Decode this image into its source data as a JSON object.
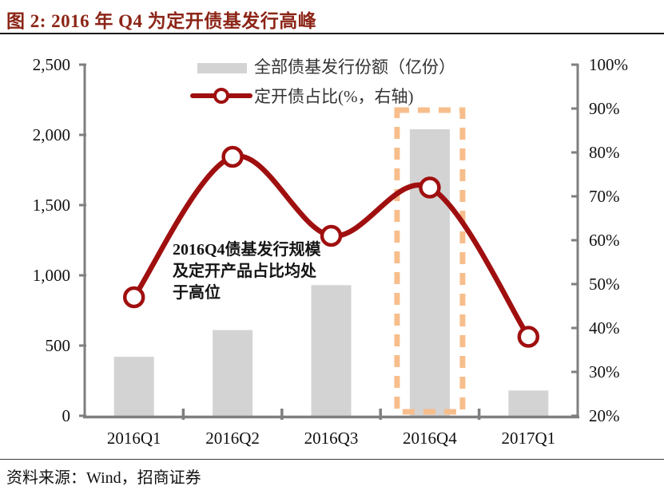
{
  "title": "图 2: 2016 年 Q4 为定开债基发行高峰",
  "legend": {
    "bar_label": "全部债基发行份额（亿份）",
    "line_label": "定开债占比(%，右轴)"
  },
  "annotation": "2016Q4债基发行规模\n及定开产品占比均处\n于高位",
  "footer": "资料来源：Wind，招商证券",
  "colors": {
    "title": "#8C2517",
    "line": "#A00F0F",
    "bar": "#D3D3D3",
    "axis": "#7F7F7F",
    "highlight": "#F7BE8C",
    "text": "#111111"
  },
  "chart_data": {
    "type": "bar+line combo",
    "categories": [
      "2016Q1",
      "2016Q2",
      "2016Q3",
      "2016Q4",
      "2017Q1"
    ],
    "series": [
      {
        "name": "全部债基发行份额（亿份）",
        "type": "bar",
        "axis": "left",
        "values": [
          420,
          610,
          930,
          2040,
          180
        ]
      },
      {
        "name": "定开债占比(%，右轴)",
        "type": "line",
        "axis": "right",
        "values": [
          47,
          79,
          61,
          72,
          38
        ]
      }
    ],
    "left_axis": {
      "min": 0,
      "max": 2500,
      "tick_step": 500,
      "ticks": [
        "2,500",
        "2,000",
        "1,500",
        "1,000",
        "500",
        "0"
      ]
    },
    "right_axis": {
      "min": 20,
      "max": 100,
      "tick_step": 10,
      "ticks": [
        "100%",
        "90%",
        "80%",
        "70%",
        "60%",
        "50%",
        "40%",
        "30%",
        "20%"
      ]
    },
    "grid": false,
    "legend_position": "top-center",
    "highlight": {
      "category": "2016Q4",
      "style": "dashed-rect"
    }
  }
}
